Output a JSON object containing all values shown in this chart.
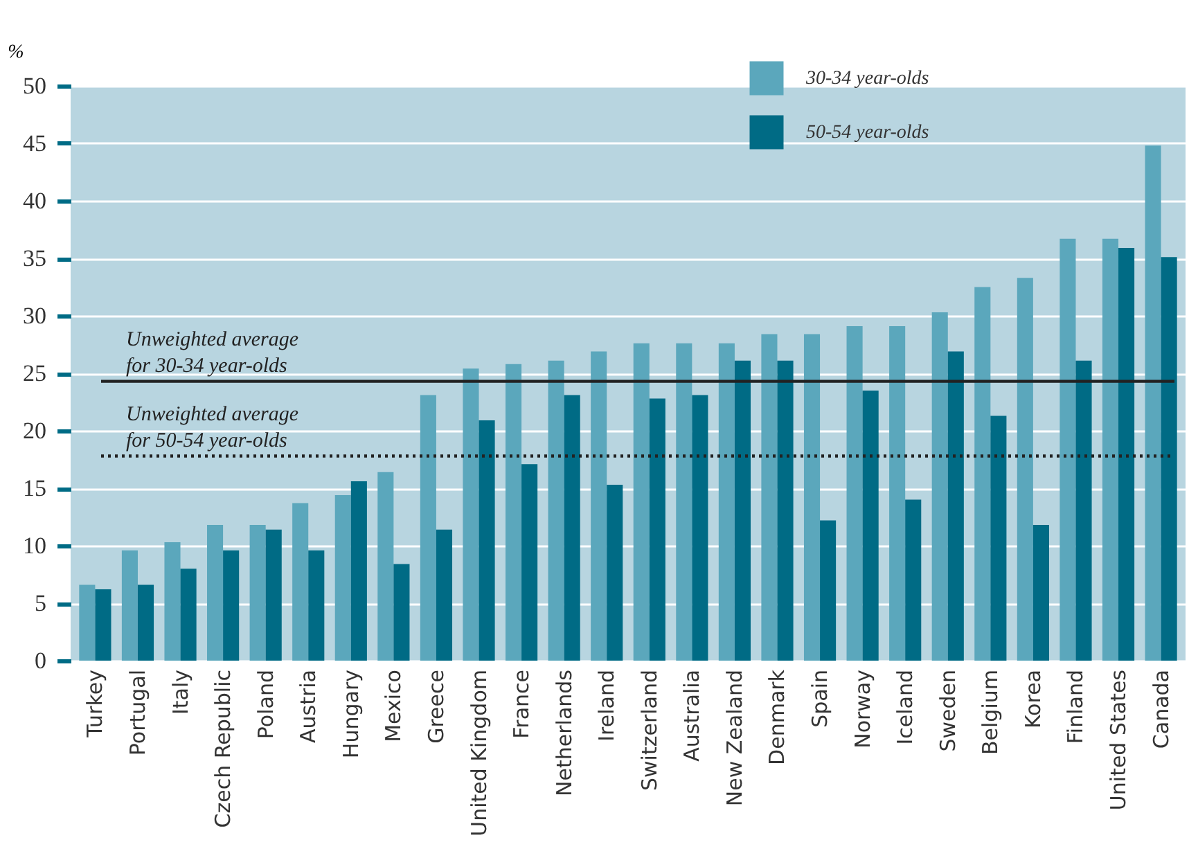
{
  "chart_data": {
    "type": "bar",
    "ylabel": "%",
    "categories": [
      "Turkey",
      "Portugal",
      "Italy",
      "Czech Republic",
      "Poland",
      "Austria",
      "Hungary",
      "Mexico",
      "Greece",
      "United Kingdom",
      "France",
      "Netherlands",
      "Ireland",
      "Switzerland",
      "Australia",
      "New Zealand",
      "Denmark",
      "Spain",
      "Norway",
      "Iceland",
      "Sweden",
      "Belgium",
      "Korea",
      "Finland",
      "United States",
      "Canada"
    ],
    "series": [
      {
        "name": "30-34 year-olds",
        "color": "#5ba7bc",
        "values": [
          6.6,
          9.6,
          10.3,
          11.8,
          11.8,
          13.7,
          14.4,
          16.4,
          23.1,
          25.4,
          25.8,
          26.1,
          26.9,
          27.6,
          27.6,
          27.6,
          28.4,
          28.4,
          29.1,
          29.1,
          30.3,
          32.5,
          33.3,
          36.7,
          36.7,
          44.8
        ]
      },
      {
        "name": "50-54 year-olds",
        "color": "#006b85",
        "values": [
          6.2,
          6.6,
          8.0,
          9.6,
          11.4,
          9.6,
          15.6,
          8.4,
          11.4,
          20.9,
          17.1,
          23.1,
          15.3,
          22.8,
          23.1,
          26.1,
          26.1,
          12.2,
          23.5,
          14.0,
          26.9,
          21.3,
          11.8,
          26.1,
          35.9,
          35.1
        ]
      }
    ],
    "ylim": [
      0,
      50
    ],
    "yticks": [
      0,
      5,
      10,
      15,
      20,
      25,
      30,
      35,
      40,
      45,
      50
    ],
    "grid": "y",
    "legend": "top",
    "ref_lines": [
      {
        "axis": "y",
        "value": 24.3,
        "label": "Unweighted average\nfor 30-34 year-olds",
        "color": "#222222",
        "line_style": "solid"
      },
      {
        "axis": "y",
        "value": 17.8,
        "label": "Unweighted average\nfor 50-54 year-olds",
        "color": "#222222",
        "line_style": "dotted"
      }
    ]
  }
}
